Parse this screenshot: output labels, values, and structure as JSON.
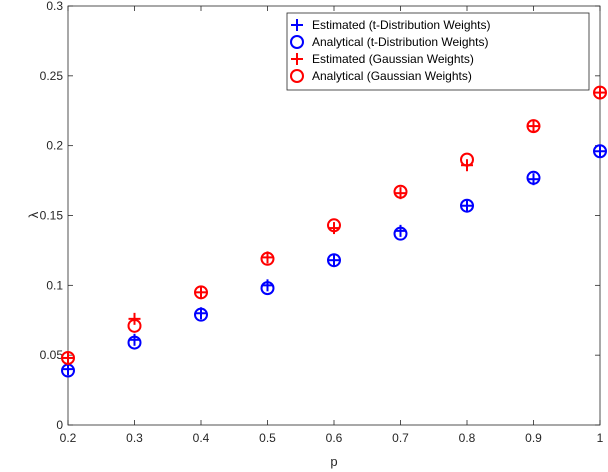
{
  "chart_data": {
    "type": "scatter",
    "title": "",
    "xlabel": "p",
    "ylabel": "λ",
    "xlim": [
      0.2,
      1.0
    ],
    "ylim": [
      0,
      0.3
    ],
    "xticks": [
      "0.2",
      "0.3",
      "0.4",
      "0.5",
      "0.6",
      "0.7",
      "0.8",
      "0.9",
      "1"
    ],
    "yticks": [
      "0",
      "0.05",
      "0.1",
      "0.15",
      "0.2",
      "0.25",
      "0.3"
    ],
    "grid": false,
    "legend_position": "top-right",
    "x": [
      0.2,
      0.3,
      0.4,
      0.5,
      0.6,
      0.7,
      0.8,
      0.9,
      1.0
    ],
    "series": [
      {
        "name": "Estimated (t-Distribution Weights)",
        "marker": "plus",
        "color": "#0000ff",
        "values": [
          0.04,
          0.061,
          0.08,
          0.1,
          0.118,
          0.139,
          0.157,
          0.176,
          0.196
        ]
      },
      {
        "name": "Analytical (t-Distribution Weights)",
        "marker": "circle",
        "color": "#0000ff",
        "values": [
          0.039,
          0.059,
          0.079,
          0.098,
          0.118,
          0.137,
          0.157,
          0.177,
          0.196
        ]
      },
      {
        "name": "Estimated (Gaussian Weights)",
        "marker": "plus",
        "color": "#ff0000",
        "values": [
          0.048,
          0.076,
          0.095,
          0.12,
          0.141,
          0.166,
          0.186,
          0.214,
          0.238
        ]
      },
      {
        "name": "Analytical (Gaussian Weights)",
        "marker": "circle",
        "color": "#ff0000",
        "values": [
          0.048,
          0.071,
          0.095,
          0.119,
          0.143,
          0.167,
          0.19,
          0.214,
          0.238
        ]
      }
    ]
  }
}
